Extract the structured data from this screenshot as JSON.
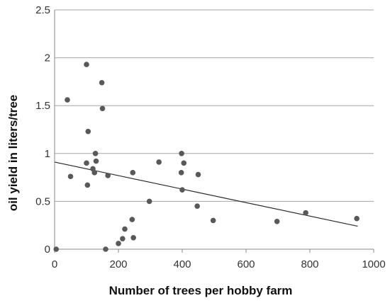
{
  "chart_data": {
    "type": "scatter",
    "title": "",
    "xlabel": "Number of trees per hobby farm",
    "ylabel": "oil yield in liters/tree",
    "xlim": [
      0,
      1000
    ],
    "ylim": [
      0,
      2.5
    ],
    "x_ticks": [
      0,
      200,
      400,
      600,
      800,
      1000
    ],
    "y_ticks": [
      0,
      0.5,
      1,
      1.5,
      2,
      2.5
    ],
    "y_tick_labels": [
      "0",
      "0.5",
      "1",
      "1.5",
      "2",
      "2.5"
    ],
    "grid": "horizontal",
    "legend": "none",
    "colors": {
      "point": "#595959",
      "trendline": "#2b2b2b",
      "grid": "#a6a6a6",
      "axis": "#888888"
    },
    "series": [
      {
        "points": [
          {
            "x": 5,
            "y": 0.0
          },
          {
            "x": 40,
            "y": 1.56
          },
          {
            "x": 50,
            "y": 0.76
          },
          {
            "x": 100,
            "y": 1.93
          },
          {
            "x": 100,
            "y": 0.9
          },
          {
            "x": 103,
            "y": 0.67
          },
          {
            "x": 105,
            "y": 1.23
          },
          {
            "x": 120,
            "y": 0.84
          },
          {
            "x": 125,
            "y": 0.8
          },
          {
            "x": 128,
            "y": 1.0
          },
          {
            "x": 130,
            "y": 0.92
          },
          {
            "x": 148,
            "y": 1.74
          },
          {
            "x": 150,
            "y": 1.47
          },
          {
            "x": 160,
            "y": 0.0
          },
          {
            "x": 167,
            "y": 0.77
          },
          {
            "x": 200,
            "y": 0.06
          },
          {
            "x": 213,
            "y": 0.11
          },
          {
            "x": 220,
            "y": 0.21
          },
          {
            "x": 243,
            "y": 0.31
          },
          {
            "x": 245,
            "y": 0.8
          },
          {
            "x": 247,
            "y": 0.12
          },
          {
            "x": 297,
            "y": 0.5
          },
          {
            "x": 327,
            "y": 0.91
          },
          {
            "x": 397,
            "y": 0.8
          },
          {
            "x": 398,
            "y": 1.0
          },
          {
            "x": 400,
            "y": 0.62
          },
          {
            "x": 405,
            "y": 0.9
          },
          {
            "x": 447,
            "y": 0.45
          },
          {
            "x": 450,
            "y": 0.78
          },
          {
            "x": 497,
            "y": 0.3
          },
          {
            "x": 697,
            "y": 0.29
          },
          {
            "x": 787,
            "y": 0.38
          },
          {
            "x": 947,
            "y": 0.32
          }
        ]
      }
    ],
    "trendline": {
      "type": "linear",
      "x_start": 0,
      "y_start": 0.91,
      "x_end": 950,
      "y_end": 0.24
    }
  }
}
